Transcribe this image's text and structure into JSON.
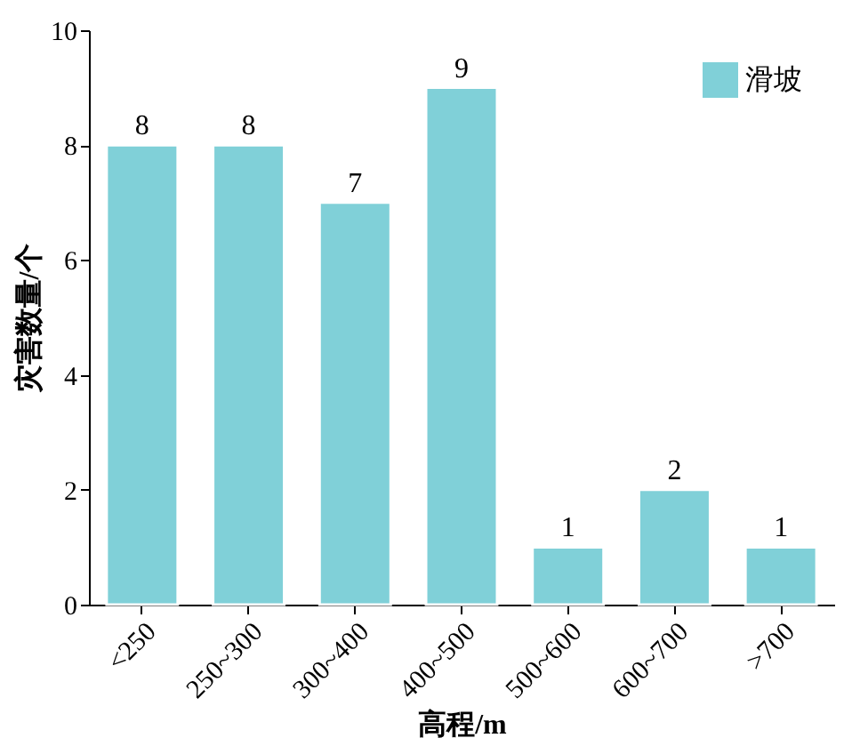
{
  "chart_data": {
    "type": "bar",
    "categories": [
      "<250",
      "250~300",
      "300~400",
      "400~500",
      "500~600",
      "600~700",
      ">700"
    ],
    "series": [
      {
        "name": "滑坡",
        "color": "#80d0d8",
        "values": [
          8,
          8,
          7,
          9,
          1,
          2,
          1
        ]
      }
    ],
    "xlabel": "高程/m",
    "ylabel": "灾害数量/个",
    "ylim": [
      0,
      10
    ],
    "yticks": [
      0,
      2,
      4,
      6,
      8,
      10
    ],
    "data_labels": true,
    "grid": false,
    "legend": "top right"
  }
}
